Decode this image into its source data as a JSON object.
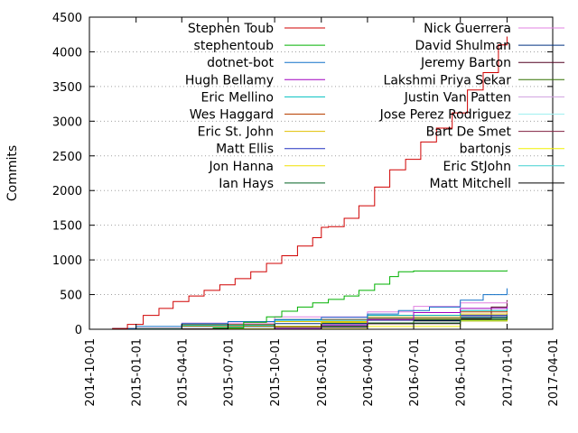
{
  "chart_data": {
    "type": "line",
    "title": "",
    "xlabel": "",
    "ylabel": "Commits",
    "xlim": [
      "2014-10-01",
      "2017-04-01"
    ],
    "ylim": [
      0,
      4500
    ],
    "x_ticks": [
      "2014-10-01",
      "2015-01-01",
      "2015-04-01",
      "2015-07-01",
      "2015-10-01",
      "2016-01-01",
      "2016-04-01",
      "2016-07-01",
      "2016-10-01",
      "2017-01-01",
      "2017-04-01"
    ],
    "y_ticks": [
      "0",
      "500",
      "1000",
      "1500",
      "2000",
      "2500",
      "3000",
      "3500",
      "4000",
      "4500"
    ],
    "grid": "horizontal dotted",
    "legend": "top, two columns",
    "series": [
      {
        "name": "Stephen Toub",
        "color": "#d00000",
        "x": [
          "2014-11-15",
          "2014-12-15",
          "2015-01-15",
          "2015-02-15",
          "2015-03-15",
          "2015-04-15",
          "2015-05-15",
          "2015-06-15",
          "2015-07-15",
          "2015-08-15",
          "2015-09-15",
          "2015-10-15",
          "2015-11-15",
          "2015-12-15",
          "2016-01-01",
          "2016-01-15",
          "2016-02-15",
          "2016-03-15",
          "2016-04-15",
          "2016-05-15",
          "2016-06-15",
          "2016-07-15",
          "2016-08-15",
          "2016-09-15",
          "2016-10-15",
          "2016-11-15",
          "2016-12-15",
          "2017-01-01"
        ],
        "values": [
          10,
          70,
          200,
          300,
          400,
          480,
          560,
          640,
          730,
          830,
          950,
          1060,
          1200,
          1320,
          1470,
          1480,
          1600,
          1780,
          2050,
          2300,
          2450,
          2700,
          2900,
          3120,
          3450,
          3700,
          4100,
          4220
        ]
      },
      {
        "name": "stephentoub",
        "color": "#00b000",
        "x": [
          "2015-06-01",
          "2015-08-01",
          "2015-09-15",
          "2015-10-15",
          "2015-11-15",
          "2015-12-15",
          "2016-01-15",
          "2016-02-15",
          "2016-03-15",
          "2016-04-15",
          "2016-05-15",
          "2016-06-01",
          "2016-07-01",
          "2016-09-01",
          "2016-11-01",
          "2017-01-01"
        ],
        "values": [
          20,
          100,
          180,
          260,
          320,
          380,
          430,
          480,
          560,
          650,
          760,
          830,
          840,
          840,
          840,
          850
        ]
      },
      {
        "name": "dotnet-bot",
        "color": "#1070c8",
        "x": [
          "2014-11-15",
          "2015-01-01",
          "2015-04-01",
          "2015-07-01",
          "2015-10-01",
          "2016-01-01",
          "2016-04-01",
          "2016-06-01",
          "2016-08-01",
          "2016-10-01",
          "2016-11-15",
          "2017-01-01"
        ],
        "values": [
          10,
          40,
          80,
          110,
          140,
          170,
          220,
          270,
          320,
          420,
          500,
          590
        ]
      },
      {
        "name": "Hugh Bellamy",
        "color": "#a000c0",
        "x": [
          "2015-10-01",
          "2016-01-01",
          "2016-04-01",
          "2016-07-01",
          "2016-10-01",
          "2017-01-01"
        ],
        "values": [
          10,
          60,
          140,
          240,
          300,
          330
        ]
      },
      {
        "name": "Eric Mellino",
        "color": "#00c0c0",
        "x": [
          "2014-11-15",
          "2015-04-01",
          "2015-10-01",
          "2016-04-01",
          "2016-10-01",
          "2017-01-01"
        ],
        "values": [
          5,
          60,
          130,
          200,
          270,
          300
        ]
      },
      {
        "name": "Wes Haggard",
        "color": "#b84000",
        "x": [
          "2014-11-15",
          "2015-04-01",
          "2015-10-01",
          "2016-04-01",
          "2016-10-01",
          "2017-01-01"
        ],
        "values": [
          10,
          70,
          140,
          200,
          250,
          270
        ]
      },
      {
        "name": "Eric St. John",
        "color": "#e0c000",
        "x": [
          "2014-11-15",
          "2015-04-01",
          "2015-10-01",
          "2016-04-01",
          "2016-10-01",
          "2017-01-01"
        ],
        "values": [
          5,
          50,
          110,
          170,
          220,
          240
        ]
      },
      {
        "name": "Matt Ellis",
        "color": "#2030c0",
        "x": [
          "2014-11-15",
          "2015-04-01",
          "2015-10-01",
          "2016-04-01",
          "2016-10-01",
          "2017-01-01"
        ],
        "values": [
          10,
          60,
          110,
          160,
          200,
          220
        ]
      },
      {
        "name": "Jon Hanna",
        "color": "#f0e000",
        "x": [
          "2015-07-01",
          "2015-10-01",
          "2016-01-01",
          "2016-04-01",
          "2016-10-01",
          "2017-01-01"
        ],
        "values": [
          5,
          40,
          100,
          150,
          200,
          220
        ]
      },
      {
        "name": "Ian Hays",
        "color": "#006020",
        "x": [
          "2015-07-01",
          "2016-01-01",
          "2016-04-01",
          "2016-10-01",
          "2017-01-01"
        ],
        "values": [
          5,
          40,
          90,
          160,
          200
        ]
      },
      {
        "name": "Nick Guerrera",
        "color": "#e080e0",
        "x": [
          "2014-11-15",
          "2015-04-01",
          "2015-10-01",
          "2016-04-01",
          "2016-07-01",
          "2016-10-01",
          "2017-01-01"
        ],
        "values": [
          10,
          90,
          180,
          250,
          330,
          380,
          400
        ]
      },
      {
        "name": "David Shulman",
        "color": "#003080",
        "x": [
          "2014-12-01",
          "2015-04-01",
          "2015-10-01",
          "2016-04-01",
          "2016-10-01",
          "2017-01-01"
        ],
        "values": [
          5,
          40,
          80,
          130,
          180,
          200
        ]
      },
      {
        "name": "Jeremy Barton",
        "color": "#500020",
        "x": [
          "2015-04-01",
          "2015-10-01",
          "2016-04-01",
          "2016-10-01",
          "2016-12-01",
          "2017-01-01"
        ],
        "values": [
          5,
          30,
          80,
          150,
          320,
          420
        ]
      },
      {
        "name": "Lakshmi Priya Sekar",
        "color": "#307000",
        "x": [
          "2015-01-01",
          "2015-07-01",
          "2016-01-01",
          "2016-07-01",
          "2017-01-01"
        ],
        "values": [
          5,
          40,
          90,
          140,
          180
        ]
      },
      {
        "name": "Justin Van Patten",
        "color": "#d0a0e0",
        "x": [
          "2014-11-15",
          "2015-04-01",
          "2015-10-01",
          "2016-04-01",
          "2016-10-01",
          "2017-01-01"
        ],
        "values": [
          5,
          50,
          110,
          160,
          200,
          230
        ]
      },
      {
        "name": "Jose Perez Rodriguez",
        "color": "#a0f0f0",
        "x": [
          "2015-04-01",
          "2015-10-01",
          "2016-04-01",
          "2016-10-01",
          "2017-01-01"
        ],
        "values": [
          5,
          30,
          90,
          160,
          200
        ]
      },
      {
        "name": "Bart De Smet",
        "color": "#802040",
        "x": [
          "2015-04-01",
          "2015-10-01",
          "2016-04-01",
          "2016-10-01",
          "2017-01-01"
        ],
        "values": [
          5,
          40,
          90,
          140,
          170
        ]
      },
      {
        "name": "bartonjs",
        "color": "#f0f000",
        "x": [
          "2015-10-01",
          "2016-04-01",
          "2016-10-01",
          "2017-01-01"
        ],
        "values": [
          5,
          40,
          120,
          160
        ]
      },
      {
        "name": "Eric StJohn",
        "color": "#40d0d0",
        "x": [
          "2015-04-01",
          "2015-10-01",
          "2016-04-01",
          "2016-10-01",
          "2017-01-01"
        ],
        "values": [
          5,
          40,
          90,
          130,
          150
        ]
      },
      {
        "name": "Matt Mitchell",
        "color": "#000000",
        "x": [
          "2015-01-01",
          "2015-07-01",
          "2016-01-01",
          "2016-07-01",
          "2017-01-01"
        ],
        "values": [
          5,
          40,
          80,
          120,
          140
        ]
      }
    ]
  }
}
